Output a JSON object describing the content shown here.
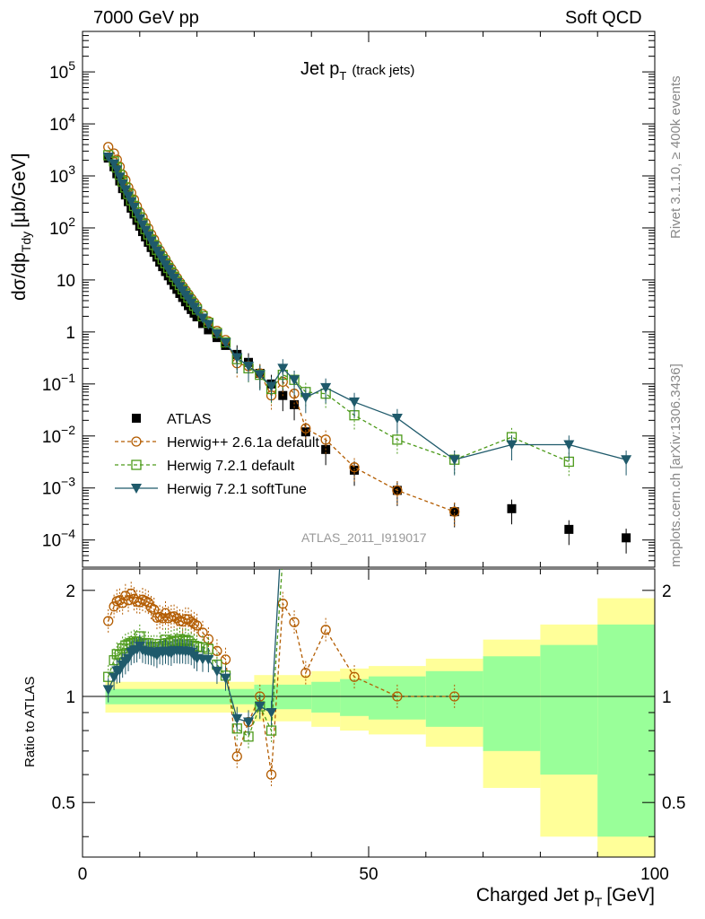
{
  "header": {
    "energy": "7000 GeV pp",
    "process": "Soft QCD",
    "rivet": "Rivet 3.1.10, ≥ 400k events",
    "source": "mcplots.cern.ch [arXiv:1306.3436]"
  },
  "chart_data": {
    "type": "line",
    "title": "Jet p",
    "title_sub": "T",
    "title_note": "(track jets)",
    "analysis": "ATLAS_2011_I919017",
    "xlabel": "Charged Jet p",
    "xlabel_sub": "T",
    "xlabel_unit": "[GeV]",
    "ylabel": "dσ/dp",
    "ylabel_sub": "Tdy",
    "ylabel_unit": "[μb/GeV]",
    "ratio_ylabel": "Ratio to ATLAS",
    "xlim": [
      0,
      100
    ],
    "ylim": [
      3e-05,
      600000
    ],
    "ratio_ylim": [
      0.35,
      2.3
    ],
    "x_ticks": [
      "0",
      "50",
      "100"
    ],
    "y_ticks": [
      "10^-4",
      "10^-3",
      "10^-2",
      "10^-1",
      "1",
      "10",
      "10^2",
      "10^3",
      "10^4",
      "10^5"
    ],
    "ratio_ticks": [
      "0.5",
      "1",
      "2"
    ],
    "legend": [
      "ATLAS",
      "Herwig++ 2.6.1a default",
      "Herwig 7.2.1 default",
      "Herwig 7.2.1 softTune"
    ],
    "colors": {
      "atlas": "#000000",
      "hpp": "#b35c00",
      "h7": "#4c9a1a",
      "soft": "#1f5a6b",
      "band_yellow": "#ffff99",
      "band_green": "#99ff99"
    },
    "series": [
      {
        "name": "ATLAS",
        "x": [
          4.5,
          5.5,
          6,
          6.5,
          7,
          7.5,
          8,
          8.5,
          9,
          9.5,
          10,
          10.5,
          11,
          11.5,
          12,
          12.5,
          13,
          13.5,
          14,
          14.5,
          15,
          15.5,
          16,
          16.5,
          17,
          17.5,
          18,
          18.5,
          19,
          19.5,
          20,
          21,
          22,
          23.5,
          25,
          27,
          29,
          31,
          33,
          35,
          37,
          39,
          42.5,
          47.5,
          55,
          65,
          75,
          85,
          95
        ],
        "y": [
          2200,
          1500,
          1100,
          800,
          570,
          430,
          320,
          240,
          185,
          140,
          108,
          85,
          67,
          53,
          42,
          34,
          27.5,
          22,
          18,
          14.5,
          12,
          9.8,
          8,
          6.6,
          5.5,
          4.6,
          3.8,
          3.2,
          2.7,
          2.3,
          1.95,
          1.45,
          1.1,
          0.78,
          0.55,
          0.37,
          0.26,
          0.16,
          0.1,
          0.06,
          0.04,
          0.012,
          0.0055,
          0.0022,
          0.0009,
          0.00035,
          0.0004,
          0.00016,
          0.00011
        ]
      },
      {
        "name": "Herwig++ 2.6.1a default",
        "x": [
          4.5,
          5.5,
          6,
          6.5,
          7,
          7.5,
          8,
          8.5,
          9,
          9.5,
          10,
          10.5,
          11,
          11.5,
          12,
          12.5,
          13,
          13.5,
          14,
          14.5,
          15,
          15.5,
          16,
          16.5,
          17,
          17.5,
          18,
          18.5,
          19,
          19.5,
          20,
          21,
          22,
          23.5,
          25,
          27,
          29,
          31,
          33,
          35,
          37,
          39,
          42.5,
          47.5,
          55,
          65
        ],
        "y": [
          3600,
          2700,
          2050,
          1500,
          1050,
          830,
          600,
          470,
          350,
          260,
          200,
          160,
          125,
          98,
          75,
          60,
          46,
          37,
          30,
          25,
          20,
          16.5,
          13.5,
          11,
          9,
          7.5,
          6.3,
          5.3,
          4.4,
          3.7,
          3.1,
          2.2,
          1.6,
          1.05,
          0.7,
          0.25,
          0.22,
          0.16,
          0.06,
          0.11,
          0.065,
          0.014,
          0.0085,
          0.0025,
          0.0009,
          0.00035
        ]
      },
      {
        "name": "Herwig 7.2.1 default",
        "x": [
          4.5,
          5.5,
          6,
          6.5,
          7,
          7.5,
          8,
          8.5,
          9,
          9.5,
          10,
          10.5,
          11,
          11.5,
          12,
          12.5,
          13,
          13.5,
          14,
          14.5,
          15,
          15.5,
          16,
          16.5,
          17,
          17.5,
          18,
          18.5,
          19,
          19.5,
          20,
          21,
          22,
          23.5,
          25,
          27,
          29,
          31,
          33,
          35,
          37,
          39,
          42.5,
          47.5,
          55,
          65,
          75,
          85
        ],
        "y": [
          2500,
          1900,
          1450,
          1050,
          780,
          600,
          450,
          340,
          265,
          200,
          160,
          120,
          95,
          75,
          58,
          47,
          38,
          31,
          25,
          21,
          17,
          14,
          11.5,
          9.5,
          8,
          6.6,
          5.5,
          4.6,
          3.8,
          3.2,
          2.7,
          2.0,
          1.5,
          0.96,
          0.63,
          0.3,
          0.2,
          0.15,
          0.08,
          0.15,
          0.12,
          0.07,
          0.065,
          0.025,
          0.0085,
          0.0035,
          0.0095,
          0.0032
        ]
      },
      {
        "name": "Herwig 7.2.1 softTune",
        "x": [
          4.5,
          5.5,
          6,
          6.5,
          7,
          7.5,
          8,
          8.5,
          9,
          9.5,
          10,
          10.5,
          11,
          11.5,
          12,
          12.5,
          13,
          13.5,
          14,
          14.5,
          15,
          15.5,
          16,
          16.5,
          17,
          17.5,
          18,
          18.5,
          19,
          19.5,
          20,
          21,
          22,
          23.5,
          25,
          27,
          29,
          31,
          33,
          35,
          37,
          39,
          42.5,
          47.5,
          55,
          65,
          75,
          85,
          95
        ],
        "y": [
          2300,
          1700,
          1300,
          950,
          700,
          540,
          410,
          320,
          250,
          190,
          150,
          115,
          90,
          71,
          56,
          45,
          36,
          29.5,
          24,
          19.5,
          16,
          13,
          10.8,
          8.9,
          7.4,
          6.2,
          5.1,
          4.3,
          3.6,
          3.0,
          2.5,
          1.85,
          1.4,
          0.92,
          0.62,
          0.32,
          0.22,
          0.15,
          0.09,
          0.2,
          0.12,
          0.055,
          0.085,
          0.045,
          0.022,
          0.0035,
          0.0068,
          0.0068,
          0.0035
        ]
      }
    ]
  }
}
